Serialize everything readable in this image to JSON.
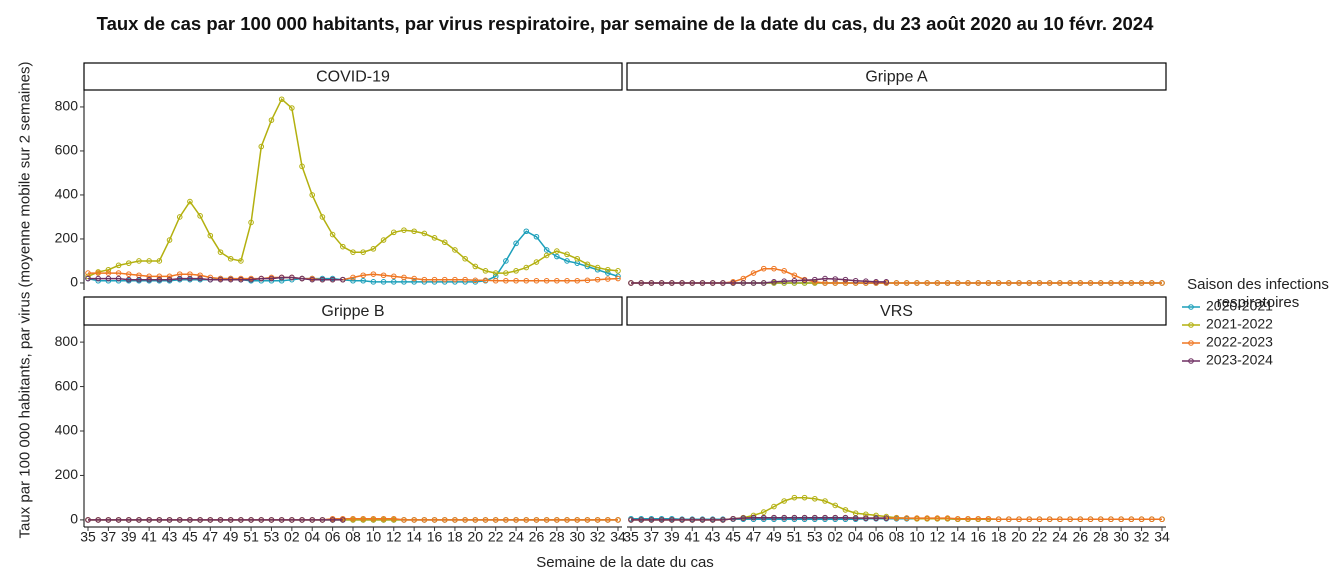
{
  "title": "Taux de cas par 100 000 habitants, par virus respiratoire, par semaine de la date du cas, du 23 août 2020 au 10 févr. 2024",
  "x_label": "Semaine de la date du cas",
  "y_label": "Taux par 100 000 habitants, par virus (moyenne mobile sur 2 semaines)",
  "legend_title": "Saison des infections respiratoires",
  "categories": [
    "35",
    null,
    "37",
    null,
    "39",
    null,
    "41",
    null,
    "43",
    null,
    "45",
    null,
    "47",
    null,
    "49",
    null,
    "51",
    null,
    "53",
    null,
    "02",
    null,
    "04",
    null,
    "06",
    null,
    "08",
    null,
    "10",
    null,
    "12",
    null,
    "14",
    null,
    "16",
    null,
    "18",
    null,
    "20",
    null,
    "22",
    null,
    "24",
    null,
    "26",
    null,
    "28",
    null,
    "30",
    null,
    "32",
    null,
    "34"
  ],
  "ylim": [
    -32,
    877
  ],
  "yticks": [
    0,
    200,
    400,
    600,
    800
  ],
  "chart_data": [
    {
      "type": "line",
      "title": "COVID-19",
      "series": [
        {
          "name": "2020-2021",
          "color": "#1b9fba",
          "values": [
            20,
            10,
            10,
            10,
            10,
            10,
            10,
            10,
            10,
            15,
            15,
            15,
            15,
            20,
            20,
            15,
            10,
            10,
            10,
            10,
            15,
            20,
            20,
            20,
            20,
            15,
            10,
            10,
            5,
            5,
            5,
            5,
            5,
            5,
            5,
            5,
            5,
            5,
            5,
            10,
            30,
            100,
            180,
            235,
            210,
            150,
            120,
            100,
            90,
            75,
            60,
            45,
            30
          ]
        },
        {
          "name": "2021-2022",
          "color": "#b3b00f",
          "values": [
            30,
            50,
            60,
            80,
            90,
            100,
            100,
            100,
            195,
            300,
            370,
            305,
            215,
            140,
            110,
            100,
            275,
            620,
            740,
            835,
            795,
            530,
            400,
            300,
            220,
            165,
            140,
            140,
            155,
            195,
            230,
            240,
            235,
            225,
            205,
            185,
            150,
            110,
            75,
            55,
            45,
            45,
            55,
            70,
            95,
            125,
            145,
            130,
            110,
            85,
            70,
            60,
            55
          ]
        },
        {
          "name": "2022-2023",
          "color": "#ef7622",
          "values": [
            45,
            45,
            45,
            45,
            40,
            35,
            30,
            30,
            30,
            40,
            40,
            35,
            25,
            20,
            20,
            20,
            20,
            20,
            25,
            25,
            25,
            20,
            20,
            15,
            15,
            15,
            25,
            35,
            40,
            35,
            30,
            25,
            20,
            15,
            15,
            15,
            15,
            15,
            12,
            12,
            10,
            10,
            10,
            10,
            10,
            10,
            10,
            10,
            10,
            12,
            15,
            18,
            20
          ]
        },
        {
          "name": "2023-2024",
          "color": "#6e2f62",
          "values": [
            20,
            20,
            20,
            20,
            15,
            15,
            15,
            15,
            15,
            20,
            20,
            20,
            15,
            15,
            15,
            15,
            15,
            20,
            20,
            25,
            25,
            20,
            15,
            15,
            15,
            15,
            null,
            null,
            null,
            null,
            null,
            null,
            null,
            null,
            null,
            null,
            null,
            null,
            null,
            null,
            null,
            null,
            null,
            null,
            null,
            null,
            null,
            null,
            null,
            null,
            null,
            null,
            null
          ]
        }
      ]
    },
    {
      "type": "line",
      "title": "Grippe A",
      "series": [
        {
          "name": "2020-2021",
          "color": "#1b9fba",
          "values": [
            0,
            0,
            0,
            0,
            0,
            0,
            0,
            0,
            0,
            0,
            0,
            0,
            0,
            0,
            0,
            0,
            0,
            0,
            0,
            0,
            0,
            0,
            0,
            0,
            0,
            0,
            0,
            0,
            0,
            0,
            0,
            0,
            0,
            0,
            0,
            0,
            0,
            0,
            0,
            0,
            0,
            0,
            0,
            0,
            0,
            0,
            0,
            0,
            0,
            0,
            0,
            0,
            0
          ]
        },
        {
          "name": "2021-2022",
          "color": "#b3b00f",
          "values": [
            0,
            0,
            0,
            0,
            0,
            0,
            0,
            0,
            0,
            0,
            0,
            0,
            0,
            0,
            0,
            0,
            0,
            0,
            0,
            0,
            0,
            0,
            0,
            0,
            0,
            0,
            0,
            0,
            0,
            0,
            0,
            0,
            0,
            0,
            0,
            0,
            0,
            0,
            0,
            0,
            0,
            0,
            0,
            0,
            0,
            0,
            0,
            0,
            0,
            0,
            0,
            0,
            0
          ]
        },
        {
          "name": "2022-2023",
          "color": "#ef7622",
          "values": [
            0,
            0,
            0,
            0,
            0,
            0,
            0,
            0,
            0,
            0,
            5,
            20,
            45,
            65,
            65,
            55,
            35,
            15,
            5,
            0,
            0,
            0,
            0,
            0,
            0,
            0,
            0,
            0,
            0,
            0,
            0,
            0,
            0,
            0,
            0,
            0,
            0,
            0,
            0,
            0,
            0,
            0,
            0,
            0,
            0,
            0,
            0,
            0,
            0,
            0,
            0,
            0,
            0
          ]
        },
        {
          "name": "2023-2024",
          "color": "#6e2f62",
          "values": [
            0,
            0,
            0,
            0,
            0,
            0,
            0,
            0,
            0,
            0,
            0,
            0,
            0,
            0,
            5,
            8,
            10,
            12,
            15,
            20,
            18,
            15,
            10,
            8,
            5,
            5,
            null,
            null,
            null,
            null,
            null,
            null,
            null,
            null,
            null,
            null,
            null,
            null,
            null,
            null,
            null,
            null,
            null,
            null,
            null,
            null,
            null,
            null,
            null,
            null,
            null,
            null,
            null
          ]
        }
      ]
    },
    {
      "type": "line",
      "title": "Grippe B",
      "series": [
        {
          "name": "2020-2021",
          "color": "#1b9fba",
          "values": [
            0,
            0,
            0,
            0,
            0,
            0,
            0,
            0,
            0,
            0,
            0,
            0,
            0,
            0,
            0,
            0,
            0,
            0,
            0,
            0,
            0,
            0,
            0,
            0,
            0,
            0,
            0,
            0,
            0,
            0,
            0,
            0,
            0,
            0,
            0,
            0,
            0,
            0,
            0,
            0,
            0,
            0,
            0,
            0,
            0,
            0,
            0,
            0,
            0,
            0,
            0,
            0,
            0
          ]
        },
        {
          "name": "2021-2022",
          "color": "#b3b00f",
          "values": [
            0,
            0,
            0,
            0,
            0,
            0,
            0,
            0,
            0,
            0,
            0,
            0,
            0,
            0,
            0,
            0,
            0,
            0,
            0,
            0,
            0,
            0,
            0,
            0,
            0,
            0,
            0,
            0,
            0,
            0,
            0,
            0,
            0,
            0,
            0,
            0,
            0,
            0,
            0,
            0,
            0,
            0,
            0,
            0,
            0,
            0,
            0,
            0,
            0,
            0,
            0,
            0,
            0
          ]
        },
        {
          "name": "2022-2023",
          "color": "#ef7622",
          "values": [
            0,
            0,
            0,
            0,
            0,
            0,
            0,
            0,
            0,
            0,
            0,
            0,
            0,
            0,
            0,
            0,
            0,
            0,
            0,
            0,
            0,
            0,
            0,
            0,
            5,
            5,
            5,
            5,
            5,
            5,
            5,
            0,
            0,
            0,
            0,
            0,
            0,
            0,
            0,
            0,
            0,
            0,
            0,
            0,
            0,
            0,
            0,
            0,
            0,
            0,
            0,
            0,
            0
          ]
        },
        {
          "name": "2023-2024",
          "color": "#6e2f62",
          "values": [
            0,
            0,
            0,
            0,
            0,
            0,
            0,
            0,
            0,
            0,
            0,
            0,
            0,
            0,
            0,
            0,
            0,
            0,
            0,
            0,
            0,
            0,
            0,
            0,
            0,
            0,
            null,
            null,
            null,
            null,
            null,
            null,
            null,
            null,
            null,
            null,
            null,
            null,
            null,
            null,
            null,
            null,
            null,
            null,
            null,
            null,
            null,
            null,
            null,
            null,
            null,
            null,
            null
          ]
        }
      ]
    },
    {
      "type": "line",
      "title": "VRS",
      "series": [
        {
          "name": "2020-2021",
          "color": "#1b9fba",
          "values": [
            5,
            5,
            5,
            5,
            5,
            3,
            3,
            3,
            3,
            3,
            3,
            3,
            3,
            3,
            3,
            3,
            3,
            3,
            3,
            3,
            3,
            3,
            3,
            5,
            5,
            5,
            5,
            5,
            5,
            5,
            5,
            5,
            3,
            3,
            3,
            3,
            3,
            3,
            3,
            3,
            3,
            3,
            3,
            3,
            3,
            3,
            3,
            3,
            3,
            3,
            3,
            3,
            3
          ]
        },
        {
          "name": "2021-2022",
          "color": "#b3b00f",
          "values": [
            0,
            0,
            0,
            0,
            0,
            0,
            0,
            0,
            0,
            0,
            5,
            10,
            20,
            35,
            60,
            85,
            100,
            100,
            95,
            85,
            65,
            45,
            30,
            25,
            20,
            15,
            10,
            8,
            5,
            5,
            5,
            5,
            3,
            3,
            3,
            3,
            3,
            3,
            3,
            3,
            3,
            3,
            3,
            3,
            3,
            3,
            3,
            3,
            3,
            3,
            3,
            3,
            3
          ]
        },
        {
          "name": "2022-2023",
          "color": "#ef7622",
          "values": [
            0,
            0,
            0,
            0,
            0,
            0,
            0,
            0,
            0,
            0,
            5,
            8,
            10,
            10,
            10,
            10,
            10,
            10,
            10,
            10,
            10,
            10,
            8,
            8,
            8,
            8,
            8,
            8,
            8,
            8,
            8,
            8,
            5,
            5,
            5,
            5,
            3,
            3,
            3,
            3,
            3,
            3,
            3,
            3,
            3,
            3,
            3,
            3,
            3,
            3,
            3,
            3,
            3
          ]
        },
        {
          "name": "2023-2024",
          "color": "#6e2f62",
          "values": [
            0,
            0,
            0,
            0,
            0,
            0,
            0,
            0,
            0,
            0,
            5,
            8,
            10,
            10,
            10,
            10,
            10,
            10,
            10,
            10,
            10,
            10,
            8,
            8,
            8,
            8,
            null,
            null,
            null,
            null,
            null,
            null,
            null,
            null,
            null,
            null,
            null,
            null,
            null,
            null,
            null,
            null,
            null,
            null,
            null,
            null,
            null,
            null,
            null,
            null,
            null,
            null,
            null
          ]
        }
      ]
    }
  ]
}
